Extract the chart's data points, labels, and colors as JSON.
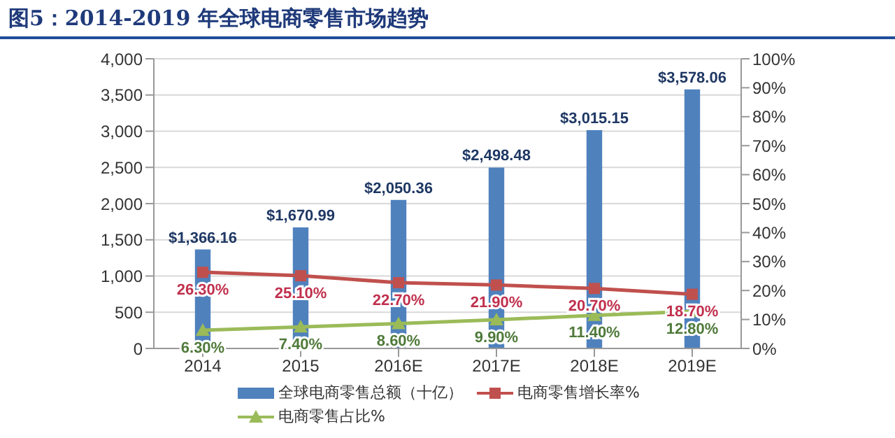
{
  "chart_data": {
    "type": "bar",
    "title": "图5：2014-2019 年全球电商零售市场趋势",
    "categories": [
      "2014",
      "2015",
      "2016E",
      "2017E",
      "2018E",
      "2019E"
    ],
    "series": [
      {
        "name": "全球电商零售总额（十亿）",
        "color": "#4f81bd",
        "values": [
          1366.16,
          1670.99,
          2050.36,
          2498.48,
          3015.15,
          3578.06
        ],
        "value_labels": [
          "$1,366.16",
          "$1,670.99",
          "$2,050.36",
          "$2,498.48",
          "$3,015.15",
          "$3,578.06"
        ]
      },
      {
        "name": "电商零售增长率%",
        "type": "line",
        "axis": "y2",
        "marker": "square",
        "color": "#c0504d",
        "values": [
          26.3,
          25.1,
          22.7,
          21.9,
          20.7,
          18.7
        ],
        "value_labels": [
          "26.30%",
          "25.10%",
          "22.70%",
          "21.90%",
          "20.70%",
          "18.70%"
        ]
      },
      {
        "name": "电商零售占比%",
        "type": "line",
        "axis": "y2",
        "marker": "triangle",
        "color": "#9bbb59",
        "values": [
          6.3,
          7.4,
          8.6,
          9.9,
          11.4,
          12.8
        ],
        "value_labels": [
          "6.30%",
          "7.40%",
          "8.60%",
          "9.90%",
          "11.40%",
          "12.80%"
        ]
      }
    ],
    "ylim": [
      0,
      4000
    ],
    "yticks": [
      {
        "value": 0,
        "label": "0"
      },
      {
        "value": 500,
        "label": "500"
      },
      {
        "value": 1000,
        "label": "1,000"
      },
      {
        "value": 1500,
        "label": "1,500"
      },
      {
        "value": 2000,
        "label": "2,000"
      },
      {
        "value": 2500,
        "label": "2,500"
      },
      {
        "value": 3000,
        "label": "3,000"
      },
      {
        "value": 3500,
        "label": "3,500"
      },
      {
        "value": 4000,
        "label": "4,000"
      }
    ],
    "y2lim": [
      0,
      100
    ],
    "y2ticks": [
      {
        "value": 0,
        "label": "0%"
      },
      {
        "value": 10,
        "label": "10%"
      },
      {
        "value": 20,
        "label": "20%"
      },
      {
        "value": 30,
        "label": "30%"
      },
      {
        "value": 40,
        "label": "40%"
      },
      {
        "value": 50,
        "label": "50%"
      },
      {
        "value": 60,
        "label": "60%"
      },
      {
        "value": 70,
        "label": "70%"
      },
      {
        "value": 80,
        "label": "80%"
      },
      {
        "value": 90,
        "label": "90%"
      },
      {
        "value": 100,
        "label": "100%"
      }
    ],
    "grid": "y",
    "legend": "bottom"
  }
}
